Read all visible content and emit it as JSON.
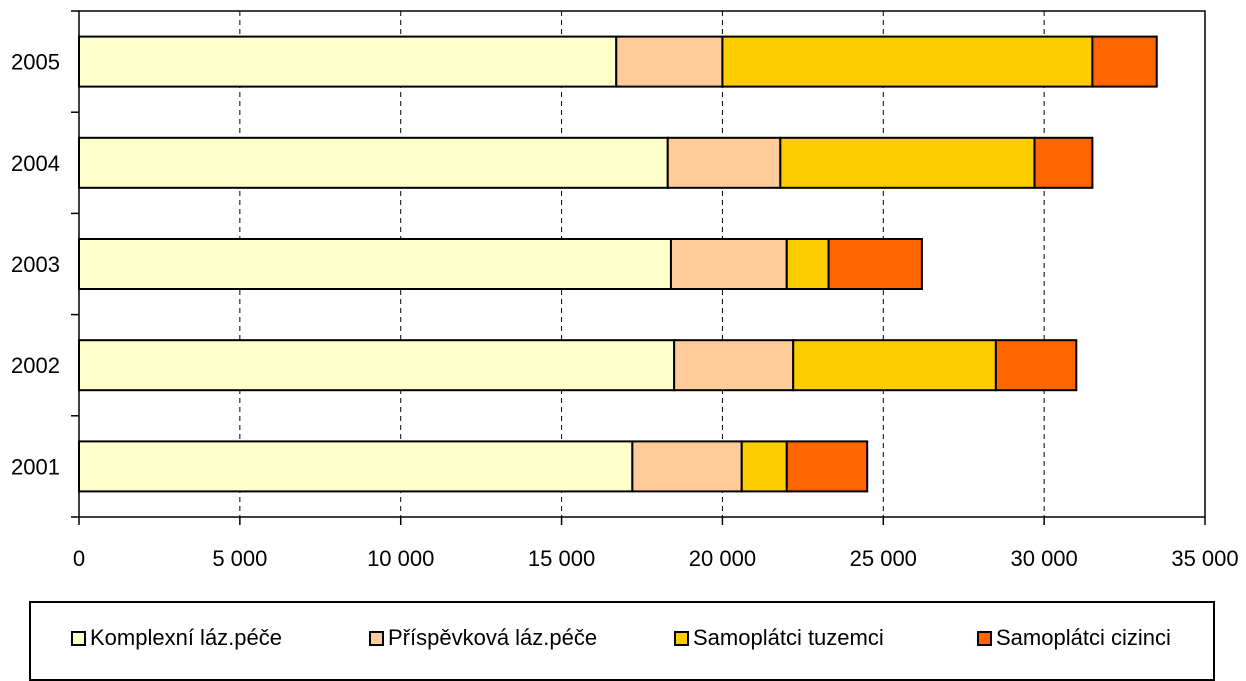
{
  "chart_data": {
    "type": "bar",
    "orientation": "horizontal",
    "stacked": true,
    "title": "",
    "xlabel": "",
    "ylabel": "",
    "xlim": [
      0,
      35000
    ],
    "x_ticks": [
      0,
      5000,
      10000,
      15000,
      20000,
      25000,
      30000,
      35000
    ],
    "x_tick_labels": [
      "0",
      "5 000",
      "10 000",
      "15 000",
      "20 000",
      "25 000",
      "30 000",
      "35 000"
    ],
    "categories": [
      "2001",
      "2002",
      "2003",
      "2004",
      "2005"
    ],
    "series": [
      {
        "name": "Komplexní láz.péče",
        "color": "#FFFFCC",
        "values": [
          17200,
          18500,
          18400,
          18300,
          16700
        ]
      },
      {
        "name": "Příspěvková láz.péče",
        "color": "#FFCC99",
        "values": [
          3400,
          3700,
          3600,
          3500,
          3300
        ]
      },
      {
        "name": "Samoplátci tuzemci",
        "color": "#FFCC00",
        "values": [
          1400,
          6300,
          1300,
          7900,
          11500
        ]
      },
      {
        "name": "Samoplátci cizinci",
        "color": "#FF6600",
        "values": [
          2500,
          2500,
          2900,
          1800,
          2000
        ]
      }
    ],
    "grid": {
      "vertical": true,
      "style": "dashed"
    },
    "legend": {
      "position": "bottom"
    }
  }
}
